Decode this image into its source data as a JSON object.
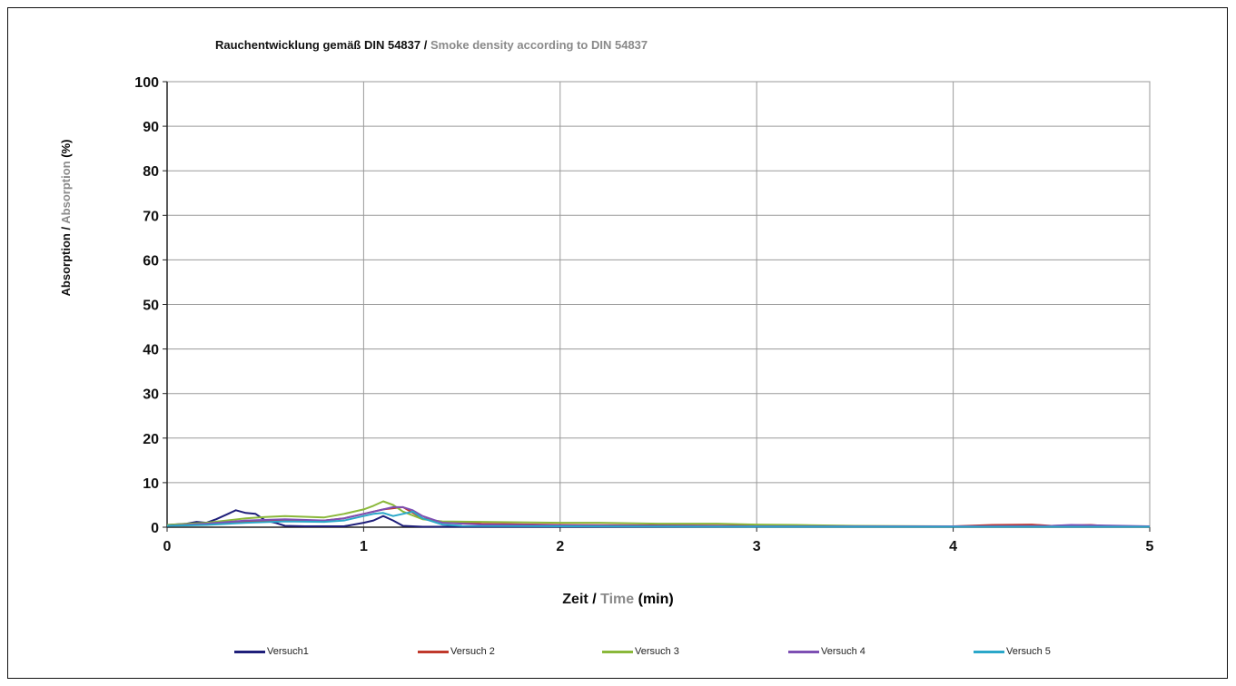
{
  "chart_data": {
    "type": "line",
    "title_de": "Rauchentwicklung gemäß DIN 54837",
    "title_sep": "/",
    "title_en": "Smoke density according to DIN 54837",
    "xlabel_de": "Zeit",
    "xlabel_sep": "/",
    "xlabel_en": "Time",
    "xlabel_unit": "(min)",
    "ylabel_de": "Absorption",
    "ylabel_sep": "/",
    "ylabel_en": "Absorption",
    "ylabel_unit": "(%)",
    "xlim": [
      0,
      5
    ],
    "ylim": [
      0,
      100
    ],
    "xticks": [
      "0",
      "1",
      "2",
      "3",
      "4",
      "5"
    ],
    "yticks": [
      "0",
      "10",
      "20",
      "30",
      "40",
      "50",
      "60",
      "70",
      "80",
      "90",
      "100"
    ],
    "grid": true,
    "legend_position": "bottom",
    "series": [
      {
        "name": "Versuch1",
        "color": "#1f1f7a",
        "x": [
          0,
          0.1,
          0.15,
          0.2,
          0.25,
          0.3,
          0.35,
          0.4,
          0.45,
          0.5,
          0.55,
          0.6,
          0.7,
          0.8,
          0.9,
          1.0,
          1.05,
          1.1,
          1.15,
          1.2,
          1.3,
          1.5,
          2.0,
          3.0,
          4.0,
          5.0
        ],
        "y": [
          0.5,
          0.8,
          1.2,
          1.0,
          1.8,
          2.8,
          3.8,
          3.2,
          3.0,
          1.5,
          1.0,
          0.3,
          0.2,
          0.2,
          0.2,
          1.0,
          1.5,
          2.5,
          1.5,
          0.3,
          0.1,
          0.1,
          0.1,
          0.1,
          0.1,
          0.1
        ]
      },
      {
        "name": "Versuch 2",
        "color": "#c0392b",
        "x": [
          0,
          0.2,
          0.4,
          0.6,
          0.8,
          0.9,
          1.0,
          1.1,
          1.2,
          1.3,
          1.4,
          1.6,
          2.0,
          2.5,
          3.0,
          3.5,
          4.0,
          4.2,
          4.4,
          4.5,
          4.6,
          4.7,
          4.8,
          5.0
        ],
        "y": [
          0.3,
          0.8,
          1.2,
          1.5,
          1.5,
          2.0,
          3.0,
          4.0,
          4.5,
          2.0,
          1.2,
          0.8,
          0.5,
          0.4,
          0.3,
          0.2,
          0.2,
          0.5,
          0.6,
          0.3,
          0.4,
          0.5,
          0.2,
          0.2
        ]
      },
      {
        "name": "Versuch 3",
        "color": "#8ab83a",
        "x": [
          0,
          0.2,
          0.4,
          0.5,
          0.6,
          0.8,
          0.9,
          1.0,
          1.05,
          1.1,
          1.15,
          1.2,
          1.3,
          1.4,
          1.6,
          2.0,
          2.2,
          2.5,
          2.8,
          3.0,
          3.2,
          3.5,
          4.0,
          5.0
        ],
        "y": [
          0.5,
          1.0,
          2.0,
          2.3,
          2.5,
          2.2,
          3.0,
          4.0,
          4.8,
          5.8,
          5.0,
          3.5,
          1.8,
          1.3,
          1.2,
          1.0,
          1.0,
          0.8,
          0.8,
          0.6,
          0.5,
          0.3,
          0.2,
          0.2
        ]
      },
      {
        "name": "Versuch 4",
        "color": "#7d4fb3",
        "x": [
          0,
          0.2,
          0.4,
          0.6,
          0.8,
          0.9,
          1.0,
          1.1,
          1.15,
          1.2,
          1.25,
          1.3,
          1.4,
          1.6,
          2.0,
          2.5,
          3.0,
          4.0,
          4.5,
          4.6,
          5.0
        ],
        "y": [
          0.3,
          0.8,
          1.5,
          1.8,
          1.5,
          2.0,
          3.0,
          4.0,
          4.5,
          4.5,
          3.8,
          2.5,
          1.0,
          0.6,
          0.4,
          0.3,
          0.2,
          0.2,
          0.3,
          0.5,
          0.2
        ]
      },
      {
        "name": "Versuch 5",
        "color": "#2aa7c9",
        "x": [
          0,
          0.2,
          0.4,
          0.6,
          0.8,
          0.9,
          1.0,
          1.05,
          1.1,
          1.15,
          1.2,
          1.25,
          1.3,
          1.4,
          1.5,
          2.0,
          3.0,
          4.0,
          5.0
        ],
        "y": [
          0.3,
          0.5,
          1.0,
          1.3,
          1.2,
          1.5,
          2.5,
          3.0,
          3.2,
          2.5,
          3.0,
          3.5,
          2.0,
          0.6,
          0.3,
          0.2,
          0.1,
          0.1,
          0.1
        ]
      }
    ]
  }
}
